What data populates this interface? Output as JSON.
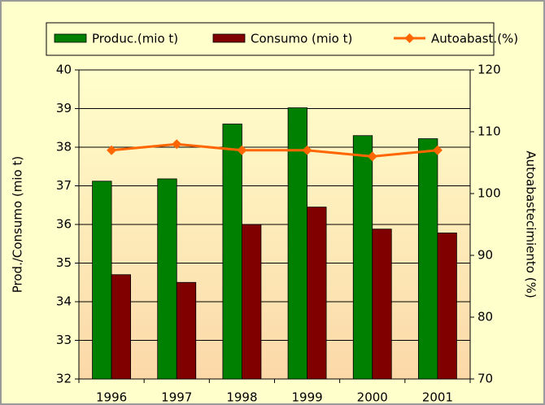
{
  "chart_data": {
    "type": "bar",
    "categories": [
      "1996",
      "1997",
      "1998",
      "1999",
      "2000",
      "2001"
    ],
    "series": [
      {
        "name": "Produc.(mio t)",
        "color": "#008000",
        "values": [
          37.12,
          37.18,
          38.6,
          39.02,
          38.3,
          38.22
        ]
      },
      {
        "name": "Consumo (mio t)",
        "color": "#800000",
        "values": [
          34.7,
          34.5,
          36.0,
          36.45,
          35.88,
          35.78
        ]
      },
      {
        "name": "Autoabast.(%)",
        "color": "#ff6600",
        "type": "line",
        "axis": "y2",
        "values": [
          107,
          108,
          107,
          107,
          106,
          107
        ]
      }
    ],
    "ylabel": "Prod./Consumo (mio t)",
    "y2label": "Autoabastecimiento (%)",
    "ylim": [
      32,
      40
    ],
    "yticks": [
      32,
      33,
      34,
      35,
      36,
      37,
      38,
      39,
      40
    ],
    "y2lim": [
      70,
      120
    ],
    "y2ticks": [
      70,
      80,
      90,
      100,
      110,
      120
    ],
    "grid": true,
    "legend": "top"
  }
}
